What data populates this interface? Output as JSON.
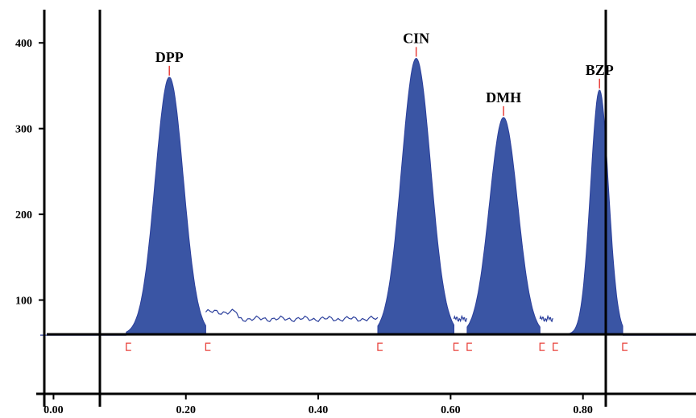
{
  "chart_data": {
    "type": "area",
    "title": "",
    "xlabel": "",
    "ylabel": "",
    "xlim": [
      -0.02,
      1.0
    ],
    "ylim": [
      0,
      450
    ],
    "baseline": 60,
    "x_ticks": [
      {
        "value": 0.0,
        "label": "0.00"
      },
      {
        "value": 0.2,
        "label": "0.20"
      },
      {
        "value": 0.4,
        "label": "0.40"
      },
      {
        "value": 0.6,
        "label": "0.60"
      },
      {
        "value": 0.8,
        "label": "0.80"
      }
    ],
    "y_ticks": [
      {
        "value": 100,
        "label": "100"
      },
      {
        "value": 200,
        "label": "200"
      },
      {
        "value": 300,
        "label": "300"
      },
      {
        "value": 400,
        "label": "400"
      }
    ],
    "peaks": [
      {
        "name": "DPP",
        "center": 0.175,
        "height": 360,
        "start": 0.11,
        "end": 0.23
      },
      {
        "name": "CIN",
        "center": 0.548,
        "height": 382,
        "start": 0.49,
        "end": 0.605
      },
      {
        "name": "DMH",
        "center": 0.68,
        "height": 313,
        "start": 0.625,
        "end": 0.735
      },
      {
        "name": "BZP",
        "center": 0.825,
        "height": 345,
        "start": 0.755,
        "end": 0.86
      }
    ],
    "colors": {
      "peak_fill": "#3a55a4",
      "trace": "#2b3f9c",
      "integration_marks": "#e8403a",
      "axes": "#000000"
    }
  }
}
